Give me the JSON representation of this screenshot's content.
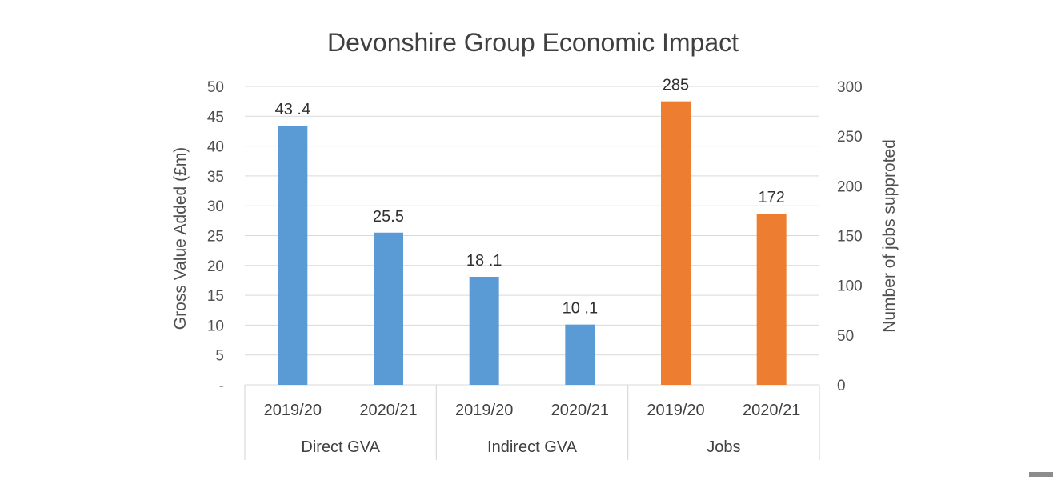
{
  "chart_data": {
    "type": "bar",
    "title": "Devonshire Group Economic Impact",
    "ylabel": "Gross Value Added (£m)",
    "y2label": "Number of jobs supproted",
    "ylim": [
      0,
      50
    ],
    "y2lim": [
      0,
      300
    ],
    "yticks": [
      "-",
      "5",
      "10",
      "15",
      "20",
      "25",
      "30",
      "35",
      "40",
      "45",
      "50"
    ],
    "y2ticks": [
      "0",
      "50",
      "100",
      "150",
      "200",
      "250",
      "300"
    ],
    "grid": true,
    "groups": [
      {
        "label": "Direct GVA",
        "axis": "left",
        "color": "#5b9bd5",
        "bars": [
          {
            "category": "2019/20",
            "value": 43.4,
            "label": "43 .4"
          },
          {
            "category": "2020/21",
            "value": 25.5,
            "label": "25.5"
          }
        ]
      },
      {
        "label": "Indirect GVA",
        "axis": "left",
        "color": "#5b9bd5",
        "bars": [
          {
            "category": "2019/20",
            "value": 18.1,
            "label": "18 .1"
          },
          {
            "category": "2020/21",
            "value": 10.1,
            "label": "10 .1"
          }
        ]
      },
      {
        "label": "Jobs",
        "axis": "right",
        "color": "#ed7d31",
        "bars": [
          {
            "category": "2019/20",
            "value": 285,
            "label": "285"
          },
          {
            "category": "2020/21",
            "value": 172,
            "label": "172"
          }
        ]
      }
    ]
  }
}
